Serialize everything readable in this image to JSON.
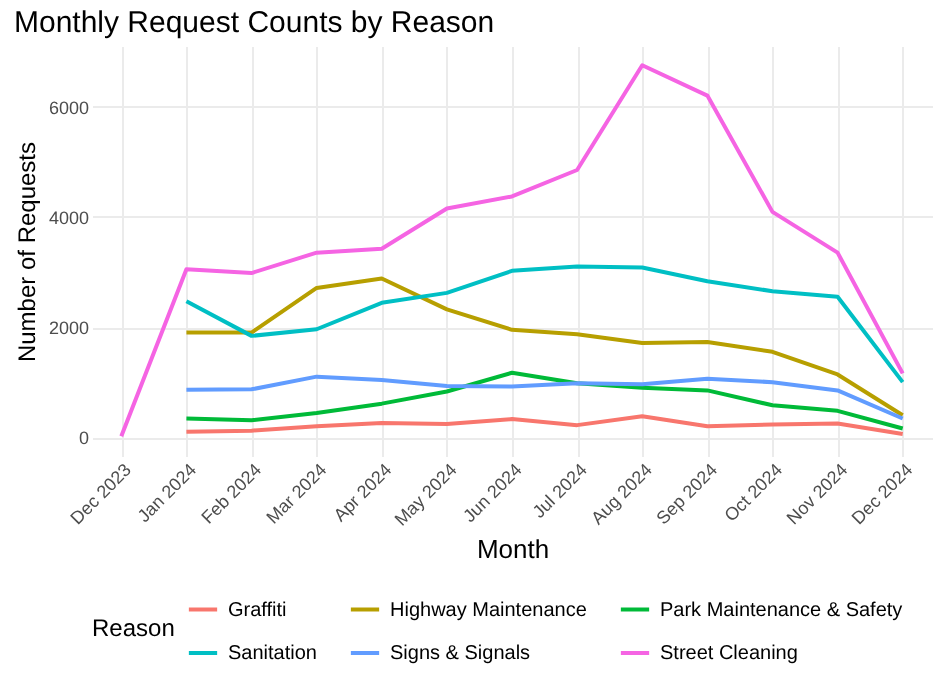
{
  "chart_data": {
    "type": "line",
    "title": "Monthly Request Counts by Reason",
    "xlabel": "Month",
    "ylabel": "Number of Requests",
    "legend_title": "Reason",
    "legend": "bottom",
    "grid": true,
    "marker": "none",
    "line_style": "solid",
    "categories": [
      "Dec 2023",
      "Jan 2024",
      "Feb 2024",
      "Mar 2024",
      "Apr 2024",
      "May 2024",
      "Jun 2024",
      "Jul 2024",
      "Aug 2024",
      "Sep 2024",
      "Oct 2024",
      "Nov 2024",
      "Dec 2024"
    ],
    "ylim": [
      -340,
      7100
    ],
    "yticks": [
      0,
      2000,
      4000,
      6000
    ],
    "series": [
      {
        "name": "Graffiti",
        "color": "#f8766d",
        "values": [
          null,
          100,
          120,
          200,
          260,
          240,
          330,
          220,
          380,
          200,
          230,
          250,
          60
        ]
      },
      {
        "name": "Highway Maintenance",
        "color": "#b79f00",
        "values": [
          null,
          1900,
          1900,
          2710,
          2880,
          2320,
          1950,
          1870,
          1710,
          1730,
          1550,
          1140,
          400
        ]
      },
      {
        "name": "Park Maintenance & Safety",
        "color": "#00ba38",
        "values": [
          null,
          340,
          310,
          440,
          610,
          830,
          1170,
          980,
          900,
          850,
          580,
          480,
          160
        ]
      },
      {
        "name": "Sanitation",
        "color": "#00bfc4",
        "values": [
          null,
          2470,
          1840,
          1960,
          2440,
          2620,
          3020,
          3100,
          3080,
          2830,
          2650,
          2550,
          1000
        ]
      },
      {
        "name": "Signs & Signals",
        "color": "#619cff",
        "values": [
          null,
          860,
          870,
          1100,
          1040,
          930,
          920,
          980,
          960,
          1060,
          1000,
          850,
          340
        ]
      },
      {
        "name": "Street Cleaning",
        "color": "#f564e3",
        "values": [
          20,
          3050,
          2980,
          3350,
          3420,
          4150,
          4370,
          4850,
          6750,
          6200,
          4090,
          3350,
          1160
        ]
      }
    ]
  }
}
